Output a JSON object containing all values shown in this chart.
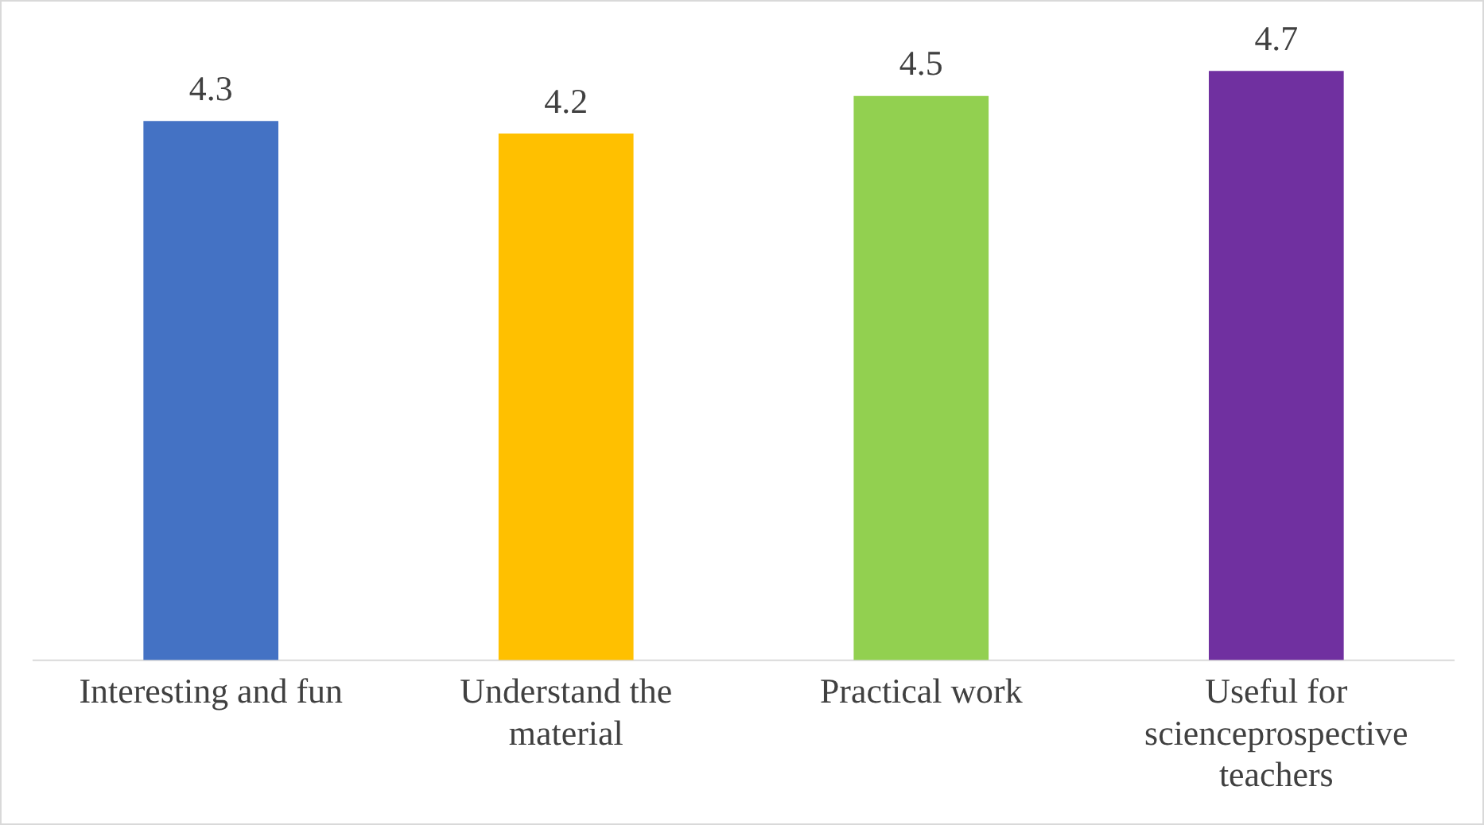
{
  "chart_data": {
    "type": "bar",
    "categories": [
      "Interesting and fun",
      "Understand the material",
      "Practical work",
      "Useful for scienceprospective teachers"
    ],
    "values": [
      4.3,
      4.2,
      4.5,
      4.7
    ],
    "colors": [
      "#4472c4",
      "#ffc000",
      "#92d050",
      "#7030a0"
    ],
    "data_labels": true,
    "grid": false,
    "legend": false
  }
}
